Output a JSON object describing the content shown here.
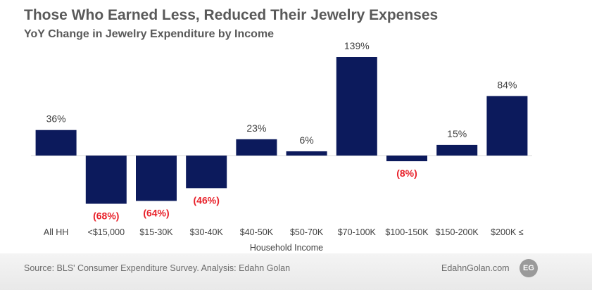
{
  "header": {
    "title": "Those Who Earned Less, Reduced Their Jewelry Expenses",
    "subtitle": "YoY Change in Jewelry Expenditure by Income"
  },
  "chart_data": {
    "type": "bar",
    "title": "Those Who Earned Less, Reduced Their Jewelry Expenses",
    "subtitle": "YoY Change in Jewelry Expenditure by Income",
    "xlabel": "Household Income",
    "ylabel": "",
    "categories": [
      "All HH",
      "<$15,000",
      "$15-30K",
      "$30-40K",
      "$40-50K",
      "$50-70K",
      "$70-100K",
      "$100-150K",
      "$150-200K",
      "$200K ≤"
    ],
    "values": [
      36,
      -68,
      -64,
      -46,
      23,
      6,
      139,
      -8,
      15,
      84
    ],
    "data_labels": [
      "36%",
      "(68%)",
      "(64%)",
      "(46%)",
      "23%",
      "6%",
      "139%",
      "(8%)",
      "15%",
      "84%"
    ],
    "ylim": [
      -68,
      139
    ],
    "grid": false,
    "legend": "none",
    "colors": {
      "bar": "#0c1a5c",
      "positive_label": "#404040",
      "negative_label": "#e8212a",
      "axis": "#d9d9d9"
    }
  },
  "footer": {
    "source": "Source: BLS' Consumer Expenditure Survey. Analysis: Edahn Golan",
    "brand": "EdahnGolan.com",
    "logo_text": "EG"
  }
}
